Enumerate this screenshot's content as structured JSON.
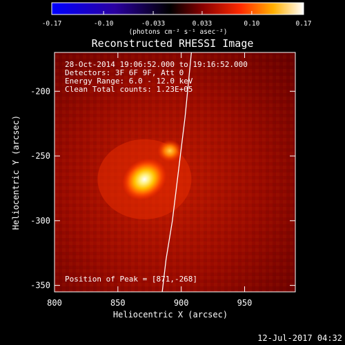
{
  "colorbar": {
    "ticks": [
      "-0.17",
      "-0.10",
      "-0.033",
      "0.033",
      "0.10",
      "0.17"
    ],
    "tick_values": [
      -0.17,
      -0.1,
      -0.033,
      0.033,
      0.1,
      0.17
    ],
    "units_label": "(photons cm⁻² s⁻¹ asec⁻²)",
    "range": [
      -0.17,
      0.17
    ],
    "colormap": [
      "#0000ff",
      "#3b0080",
      "#000000",
      "#ff2a00",
      "#ffd400",
      "#ffffff"
    ]
  },
  "plot": {
    "title": "Reconstructed RHESSI Image",
    "annotations": [
      "28-Oct-2014 19:06:52.000 to 19:16:52.000",
      "Detectors: 3F 6F 9F, Att 0",
      "Energy Range: 6.0 - 12.0 keV",
      "Clean    Total counts: 1.23E+05"
    ],
    "peak_label": "Position of Peak = [871,-268]",
    "x_label": "Heliocentric X (arcsec)",
    "y_label": "Heliocentric Y (arcsec)",
    "x_ticks": [
      "800",
      "850",
      "900",
      "950"
    ],
    "y_ticks": [
      "-200",
      "-250",
      "-300",
      "-350"
    ],
    "timestamp": "12-Jul-2017 04:32"
  },
  "chart_data": {
    "type": "heatmap",
    "title": "Reconstructed RHESSI Image",
    "xlabel": "Heliocentric X (arcsec)",
    "ylabel": "Heliocentric Y (arcsec)",
    "xlim": [
      800,
      990
    ],
    "ylim": [
      -355,
      -170
    ],
    "x_ticks": [
      800,
      850,
      900,
      950
    ],
    "y_ticks": [
      -200,
      -250,
      -300,
      -350
    ],
    "value_units": "photons cm^-2 s^-1 asec^-2",
    "value_range": [
      -0.17,
      0.17
    ],
    "peak_position": [
      871,
      -268
    ],
    "peak_value": 0.17,
    "sources": [
      {
        "x": 871,
        "y": -268,
        "peak": 0.17
      },
      {
        "x": 891,
        "y": -246,
        "peak": 0.12
      }
    ],
    "limb_curve": [
      [
        908,
        -170
      ],
      [
        903,
        -220
      ],
      [
        898,
        -260
      ],
      [
        893,
        -300
      ],
      [
        888,
        -330
      ],
      [
        885,
        -355
      ]
    ]
  }
}
